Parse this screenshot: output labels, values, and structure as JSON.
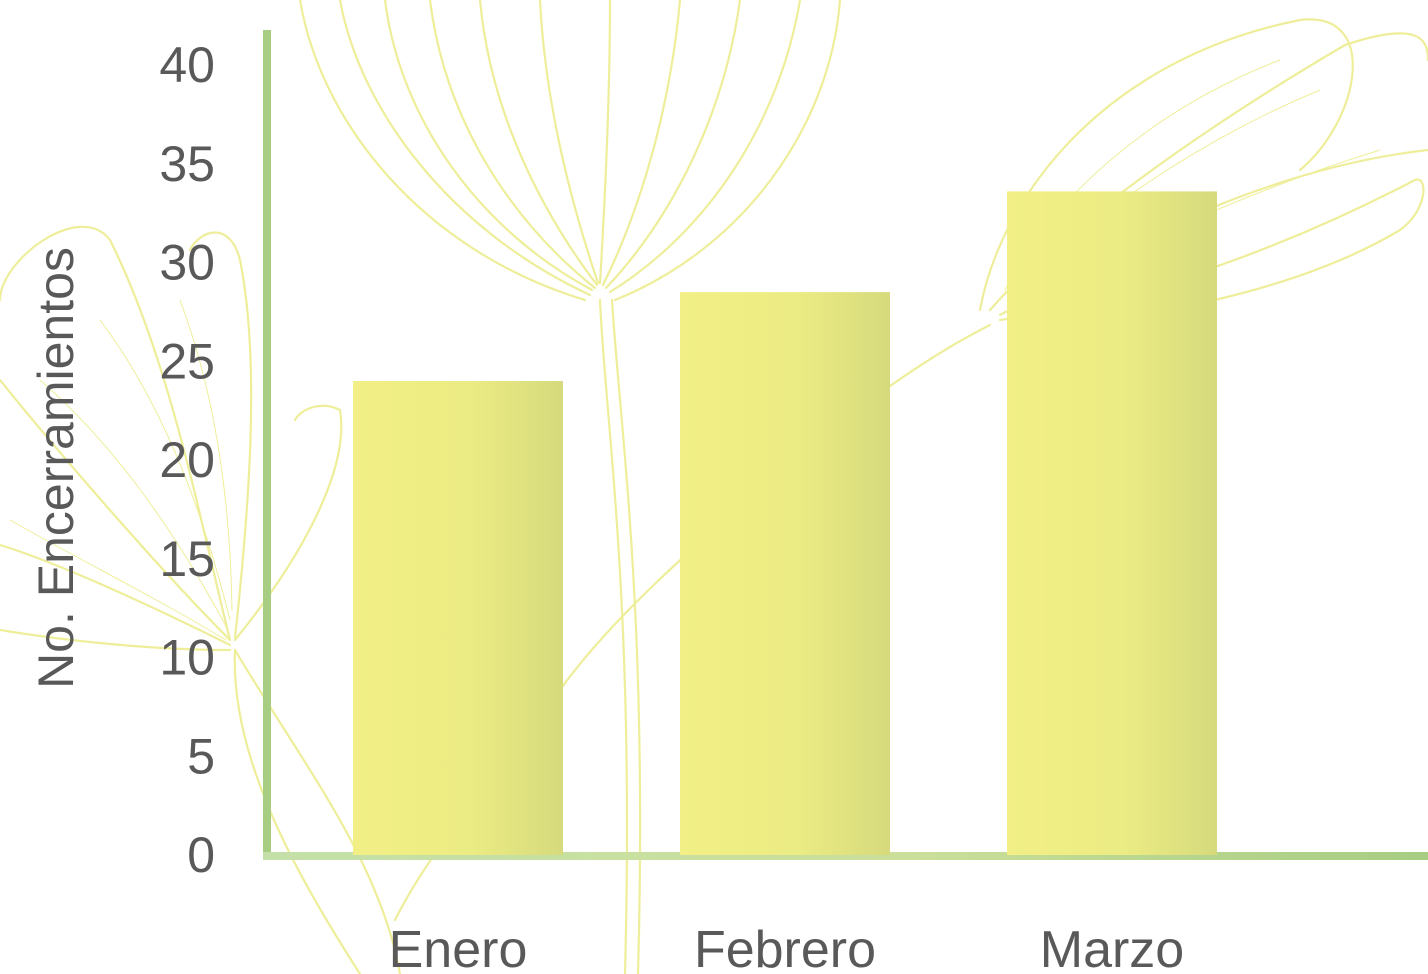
{
  "colors": {
    "bar_light": "#f1ef85",
    "bar_dark": "#d6da7c",
    "axis_light": "#c4e0a8",
    "axis_dark": "#a6cd82",
    "decoration": "#eeee9a",
    "text": "#595959"
  },
  "chart_data": {
    "type": "bar",
    "categories": [
      "Enero",
      "Febrero",
      "Marzo"
    ],
    "values": [
      24,
      28.5,
      33.6
    ],
    "title": "",
    "xlabel": "",
    "ylabel": "No. Encerramientos",
    "ylim": [
      0,
      40
    ],
    "yticks": [
      0,
      5,
      10,
      15,
      20,
      25,
      30,
      35,
      40
    ],
    "grid": false,
    "legend": "none"
  }
}
